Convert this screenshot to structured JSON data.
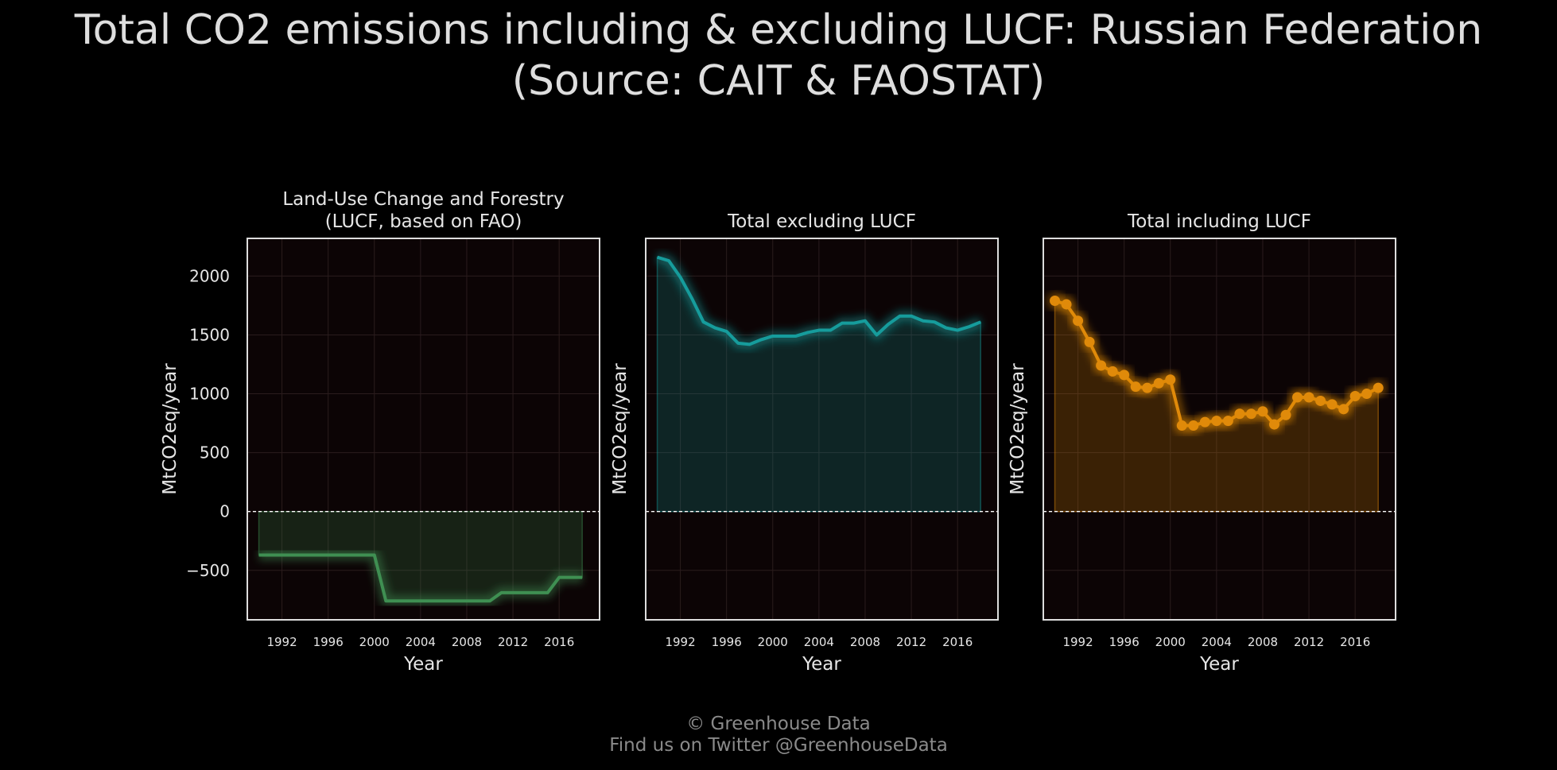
{
  "title": {
    "line1": "Total CO2 emissions including & excluding LUCF: Russian Federation",
    "line2": "(Source: CAIT & FAOSTAT)"
  },
  "footer": {
    "line1": "© Greenhouse Data",
    "line2": "Find us on Twitter @GreenhouseData"
  },
  "colors": {
    "background": "#000000",
    "plot_background": "#0c0405",
    "lucf": "#3f8f52",
    "excl": "#169c9c",
    "incl": "#e08a0a",
    "zero_line": "#ffffff",
    "frame": "#dddddd"
  },
  "chart_data": [
    {
      "type": "area",
      "title": [
        "Land-Use Change and Forestry",
        "(LUCF, based on FAO)"
      ],
      "xlabel": "Year",
      "ylabel": "MtCO2eq/year",
      "xlim": [
        1989,
        2019.5
      ],
      "ylim": [
        -920,
        2320
      ],
      "xticks": [
        1992,
        1996,
        2000,
        2004,
        2008,
        2012,
        2016
      ],
      "yticks": [
        2000,
        1500,
        1000,
        500,
        0,
        -500
      ],
      "show_yticklabels": true,
      "grid": true,
      "markers": false,
      "zero_line": "dashed",
      "color_key": "lucf",
      "x": [
        1990,
        1991,
        1992,
        1993,
        1994,
        1995,
        1996,
        1997,
        1998,
        1999,
        2000,
        2001,
        2002,
        2003,
        2004,
        2005,
        2006,
        2007,
        2008,
        2009,
        2010,
        2011,
        2012,
        2013,
        2014,
        2015,
        2016,
        2017,
        2018
      ],
      "values": [
        -370,
        -370,
        -370,
        -370,
        -370,
        -370,
        -370,
        -370,
        -370,
        -370,
        -370,
        -760,
        -760,
        -760,
        -760,
        -760,
        -760,
        -760,
        -760,
        -760,
        -760,
        -690,
        -690,
        -690,
        -690,
        -690,
        -560,
        -560,
        -560
      ]
    },
    {
      "type": "area",
      "title": [
        "Total excluding LUCF"
      ],
      "xlabel": "Year",
      "ylabel": "MtCO2eq/year",
      "xlim": [
        1989,
        2019.5
      ],
      "ylim": [
        -920,
        2320
      ],
      "xticks": [
        1992,
        1996,
        2000,
        2004,
        2008,
        2012,
        2016
      ],
      "yticks": [
        2000,
        1500,
        1000,
        500,
        0,
        -500
      ],
      "show_yticklabels": false,
      "grid": true,
      "markers": false,
      "zero_line": "dashed",
      "color_key": "excl",
      "x": [
        1990,
        1991,
        1992,
        1993,
        1994,
        1995,
        1996,
        1997,
        1998,
        1999,
        2000,
        2001,
        2002,
        2003,
        2004,
        2005,
        2006,
        2007,
        2008,
        2009,
        2010,
        2011,
        2012,
        2013,
        2014,
        2015,
        2016,
        2017,
        2018
      ],
      "values": [
        2160,
        2130,
        1990,
        1810,
        1610,
        1560,
        1530,
        1430,
        1420,
        1460,
        1490,
        1490,
        1490,
        1520,
        1540,
        1540,
        1600,
        1600,
        1620,
        1500,
        1590,
        1660,
        1660,
        1620,
        1610,
        1560,
        1540,
        1570,
        1610
      ]
    },
    {
      "type": "area",
      "title": [
        "Total including LUCF"
      ],
      "xlabel": "Year",
      "ylabel": "MtCO2eq/year",
      "xlim": [
        1989,
        2019.5
      ],
      "ylim": [
        -920,
        2320
      ],
      "xticks": [
        1992,
        1996,
        2000,
        2004,
        2008,
        2012,
        2016
      ],
      "yticks": [
        2000,
        1500,
        1000,
        500,
        0,
        -500
      ],
      "show_yticklabels": false,
      "grid": true,
      "markers": true,
      "zero_line": "dashed",
      "color_key": "incl",
      "x": [
        1990,
        1991,
        1992,
        1993,
        1994,
        1995,
        1996,
        1997,
        1998,
        1999,
        2000,
        2001,
        2002,
        2003,
        2004,
        2005,
        2006,
        2007,
        2008,
        2009,
        2010,
        2011,
        2012,
        2013,
        2014,
        2015,
        2016,
        2017,
        2018
      ],
      "values": [
        1790,
        1760,
        1620,
        1440,
        1240,
        1190,
        1160,
        1060,
        1050,
        1090,
        1120,
        730,
        730,
        760,
        770,
        770,
        830,
        830,
        850,
        740,
        820,
        970,
        970,
        940,
        910,
        870,
        980,
        1000,
        1050
      ]
    }
  ]
}
